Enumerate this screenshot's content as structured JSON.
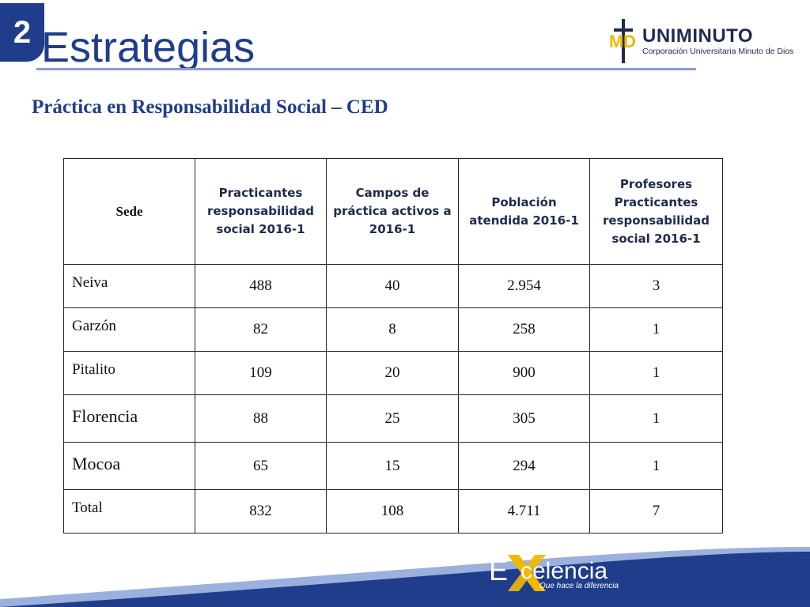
{
  "slide": {
    "number": "2",
    "title": "Estrategias",
    "subtitle": "Práctica en Responsabilidad Social – CED"
  },
  "logo": {
    "brand": "UNIMINUTO",
    "tagline": "Corporación Universitaria Minuto de Dios"
  },
  "table": {
    "headers": [
      "Sede",
      "Practicantes responsabilidad social 2016-1",
      "Campos de práctica activos a 2016-1",
      "Población atendida 2016-1",
      "Profesores Practicantes responsabilidad social 2016-1"
    ],
    "rows": [
      {
        "sede": "Neiva",
        "practicantes": "488",
        "campos": "40",
        "poblacion": "2.954",
        "profesores": "3"
      },
      {
        "sede": "Garzón",
        "practicantes": "82",
        "campos": "8",
        "poblacion": "258",
        "profesores": "1"
      },
      {
        "sede": "Pitalito",
        "practicantes": "109",
        "campos": "20",
        "poblacion": "900",
        "profesores": "1"
      },
      {
        "sede": "Florencia",
        "practicantes": "88",
        "campos": "25",
        "poblacion": "305",
        "profesores": "1"
      },
      {
        "sede": "Mocoa",
        "practicantes": "65",
        "campos": "15",
        "poblacion": "294",
        "profesores": "1"
      },
      {
        "sede": "Total",
        "practicantes": "832",
        "campos": "108",
        "poblacion": "4.711",
        "profesores": "7"
      }
    ]
  },
  "footer": {
    "brand_initial": "E",
    "brand_word": "celencia",
    "tagline": "Que hace la diferencia"
  },
  "colors": {
    "primary_blue": "#1f3d8a",
    "accent_yellow": "#f2b800"
  }
}
